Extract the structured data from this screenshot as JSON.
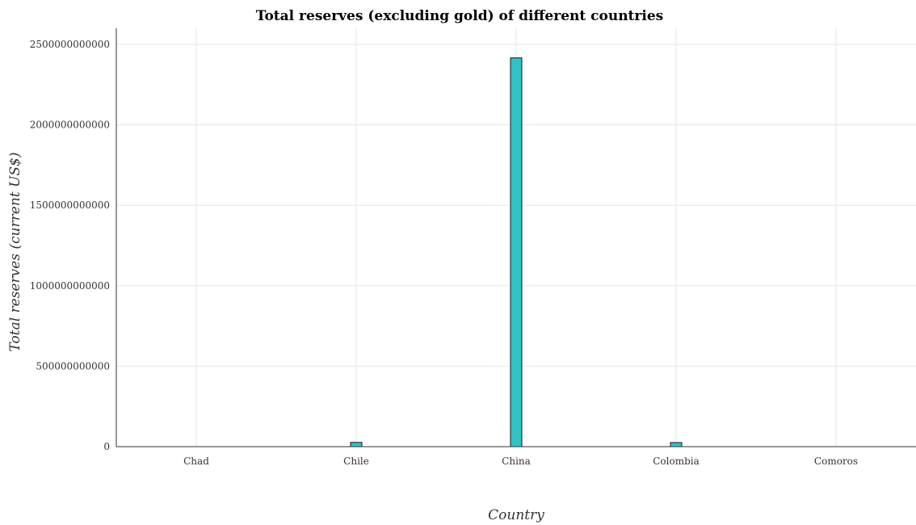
{
  "chart_data": {
    "type": "bar",
    "title": "Total reserves (excluding gold) of different countries",
    "xlabel": "Country",
    "ylabel": "Total reserves (current US$)",
    "categories": [
      "Chad",
      "Chile",
      "China",
      "Colombia",
      "Comoros"
    ],
    "values": [
      1200000000,
      26500000000,
      2416000000000,
      25500000000,
      210000000
    ],
    "ylim": [
      0,
      2600000000000
    ],
    "yticks": [
      0,
      500000000000,
      1000000000000,
      1500000000000,
      2000000000000,
      2500000000000
    ],
    "ytick_labels": [
      "0",
      "500000000000",
      "1000000000000",
      "1500000000000",
      "2000000000000",
      "2500000000000"
    ],
    "grid": true,
    "bar_color": "#2ec4c6"
  }
}
